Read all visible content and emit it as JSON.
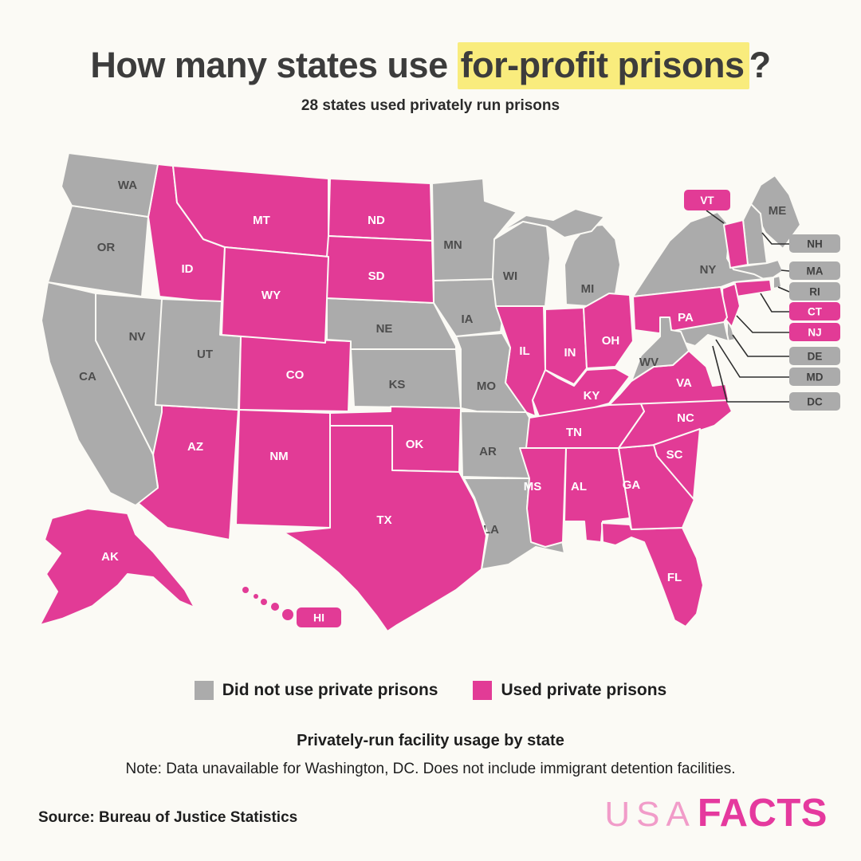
{
  "theme": {
    "background": "#FBFAF5",
    "highlight": "#F9EC7D",
    "title_color": "#3C3C3C",
    "connector_color": "#2E2E2E"
  },
  "header": {
    "title_prefix": "How many states use ",
    "title_highlight": "for-profit prisons",
    "title_suffix": "?",
    "subtitle": "28 states used privately run prisons"
  },
  "legend": {
    "items": [
      {
        "label": "Did not use private prisons",
        "color": "#ABABAB"
      },
      {
        "label": "Used private prisons",
        "color": "#E23B96"
      }
    ]
  },
  "footer": {
    "caption": "Privately-run facility usage by state",
    "note": "Note: Data unavailable for Washington, DC. Does not include immigrant detention facilities.",
    "source": "Source: Bureau of Justice Statistics",
    "logo": {
      "usa": "USA",
      "facts": "FACTS"
    }
  },
  "chart_data": {
    "type": "heatmap",
    "subtype": "us-choropleth-map",
    "title": "How many states use for-profit prisons?",
    "subtitle": "28 states used privately run prisons",
    "legend": [
      "Did not use private prisons",
      "Used private prisons"
    ],
    "no_data": [
      "DC"
    ],
    "used_count": 28,
    "states": [
      {
        "code": "AK",
        "used": true
      },
      {
        "code": "AL",
        "used": true
      },
      {
        "code": "AR",
        "used": false
      },
      {
        "code": "AZ",
        "used": true
      },
      {
        "code": "CA",
        "used": false
      },
      {
        "code": "CO",
        "used": true
      },
      {
        "code": "CT",
        "used": true
      },
      {
        "code": "DE",
        "used": false
      },
      {
        "code": "FL",
        "used": true
      },
      {
        "code": "GA",
        "used": true
      },
      {
        "code": "HI",
        "used": true
      },
      {
        "code": "IA",
        "used": false
      },
      {
        "code": "ID",
        "used": true
      },
      {
        "code": "IL",
        "used": true
      },
      {
        "code": "IN",
        "used": true
      },
      {
        "code": "KS",
        "used": false
      },
      {
        "code": "KY",
        "used": true
      },
      {
        "code": "LA",
        "used": false
      },
      {
        "code": "MA",
        "used": false
      },
      {
        "code": "MD",
        "used": false
      },
      {
        "code": "ME",
        "used": false
      },
      {
        "code": "MI",
        "used": false
      },
      {
        "code": "MN",
        "used": false
      },
      {
        "code": "MO",
        "used": false
      },
      {
        "code": "MS",
        "used": true
      },
      {
        "code": "MT",
        "used": true
      },
      {
        "code": "NC",
        "used": true
      },
      {
        "code": "ND",
        "used": true
      },
      {
        "code": "NE",
        "used": false
      },
      {
        "code": "NH",
        "used": false
      },
      {
        "code": "NJ",
        "used": true
      },
      {
        "code": "NM",
        "used": true
      },
      {
        "code": "NV",
        "used": false
      },
      {
        "code": "NY",
        "used": false
      },
      {
        "code": "OH",
        "used": true
      },
      {
        "code": "OK",
        "used": true
      },
      {
        "code": "OR",
        "used": false
      },
      {
        "code": "PA",
        "used": true
      },
      {
        "code": "RI",
        "used": false
      },
      {
        "code": "SC",
        "used": true
      },
      {
        "code": "SD",
        "used": true
      },
      {
        "code": "TN",
        "used": true
      },
      {
        "code": "TX",
        "used": true
      },
      {
        "code": "UT",
        "used": false
      },
      {
        "code": "VA",
        "used": true
      },
      {
        "code": "VT",
        "used": true
      },
      {
        "code": "WA",
        "used": false
      },
      {
        "code": "WI",
        "used": false
      },
      {
        "code": "WV",
        "used": false
      },
      {
        "code": "WY",
        "used": true
      }
    ]
  },
  "map": {
    "callouts": [
      {
        "code": "VT"
      },
      {
        "code": "NH"
      },
      {
        "code": "MA"
      },
      {
        "code": "RI"
      },
      {
        "code": "CT"
      },
      {
        "code": "NJ"
      },
      {
        "code": "DE"
      },
      {
        "code": "MD"
      },
      {
        "code": "DC"
      }
    ]
  }
}
